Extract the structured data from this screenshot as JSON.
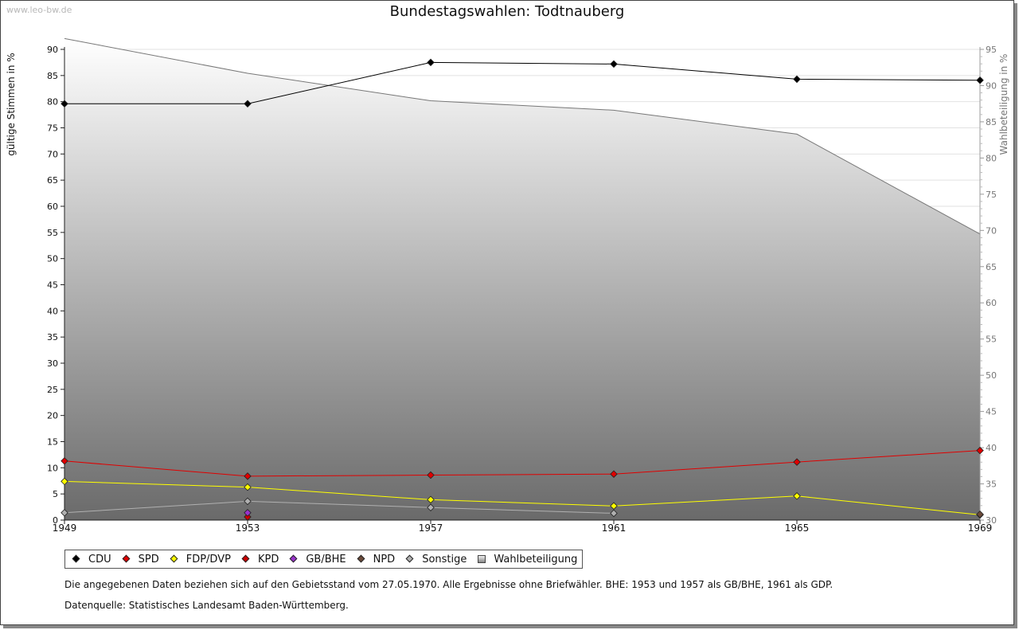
{
  "watermark": "www.leo-bw.de",
  "chart_data": {
    "type": "line",
    "title": "Bundestagswahlen: Todtnauberg",
    "ylabel": "gültige Stimmen in %",
    "y2label": "Wahlbeteiligung in %",
    "ylim": [
      0,
      90
    ],
    "y2lim": [
      30,
      95
    ],
    "yticks": [
      0,
      5,
      10,
      15,
      20,
      25,
      30,
      35,
      40,
      45,
      50,
      55,
      60,
      65,
      70,
      75,
      80,
      85,
      90
    ],
    "y2ticks": [
      30,
      35,
      40,
      45,
      50,
      55,
      60,
      65,
      70,
      75,
      80,
      85,
      90,
      95
    ],
    "grid": true,
    "legend_position": "bottom",
    "x": [
      1949,
      1953,
      1957,
      1961,
      1965,
      1969
    ],
    "series": [
      {
        "name": "CDU",
        "color": "#000000",
        "values": [
          79.6,
          79.6,
          87.5,
          87.2,
          84.3,
          84.1
        ]
      },
      {
        "name": "SPD",
        "color": "#e00000",
        "values": [
          11.3,
          8.4,
          8.6,
          8.8,
          11.1,
          13.3
        ]
      },
      {
        "name": "FDP/DVP",
        "color": "#ffff00",
        "values": [
          7.4,
          6.3,
          3.9,
          2.7,
          4.6,
          1.0
        ]
      },
      {
        "name": "KPD",
        "color": "#cc0000",
        "values": [
          null,
          0.6,
          null,
          null,
          null,
          null
        ]
      },
      {
        "name": "GB/BHE",
        "color": "#9933cc",
        "values": [
          null,
          1.4,
          null,
          null,
          null,
          null
        ]
      },
      {
        "name": "NPD",
        "color": "#6b4a3a",
        "values": [
          null,
          null,
          null,
          null,
          null,
          1.1
        ]
      },
      {
        "name": "Sonstige",
        "color": "#b0b0b0",
        "values": [
          1.4,
          3.6,
          2.4,
          1.3,
          null,
          null
        ]
      },
      {
        "name": "Wahlbeteiligung",
        "color": "#777777",
        "axis": "right",
        "values": [
          96.5,
          91.7,
          87.9,
          86.6,
          83.3,
          69.5
        ]
      }
    ]
  },
  "notes": [
    "Die angegebenen Daten beziehen sich auf den Gebietsstand vom 27.05.1970. Alle Ergebnisse ohne Briefwähler. BHE: 1953 und 1957 als GB/BHE, 1961 als GDP.",
    "Datenquelle: Statistisches Landesamt Baden-Württemberg."
  ]
}
